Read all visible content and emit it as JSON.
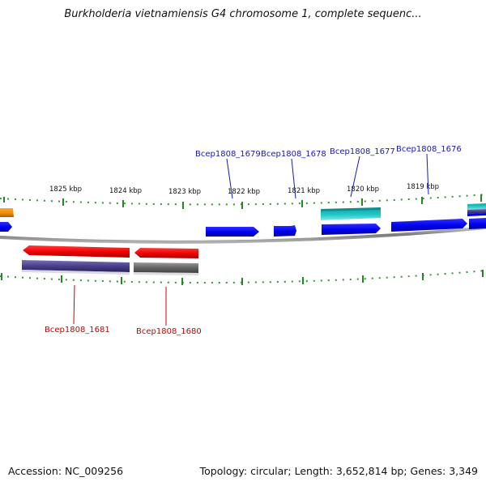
{
  "title": "Burkholderia vietnamiensis G4 chromosome 1, complete sequenc...",
  "footer": {
    "accession": "Accession: NC_009256",
    "summary": "Topology: circular; Length: 3,652,814 bp; Genes: 3,349"
  },
  "map": {
    "scale_labels": [
      "1825 kbp",
      "1824 kbp",
      "1823 kbp",
      "1822 kbp",
      "1821 kbp",
      "1820 kbp",
      "1819 kbp"
    ],
    "gene_labels": {
      "top": [
        "Bcep1808_1679",
        "Bcep1808_1678",
        "Bcep1808_1677",
        "Bcep1808_1676"
      ],
      "bottom": [
        "Bcep1808_1681",
        "Bcep1808_1680"
      ]
    },
    "colors": {
      "forward_gene": "#0000ee",
      "reverse_gene": "#ee0000",
      "cds_reverse": "#4a3f8a",
      "cds_gray": "#666666",
      "teal": "#20c0c0",
      "orange": "#ee8800",
      "backbone": "#8a8a8a",
      "tick": "#228822",
      "top_label": "#1a1ab0",
      "bottom_label": "#cc0000"
    }
  }
}
